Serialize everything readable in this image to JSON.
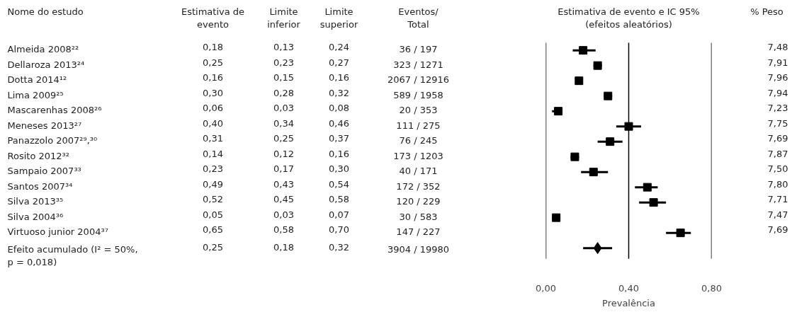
{
  "chart_data": [
    {
      "type": "other",
      "ylabel": "Nome do estudo",
      "categories": [
        "Estimativa de\nevento",
        "Limite\ninferior",
        "Limite\nsuperior",
        "Eventos/\nTotal",
        "% Peso"
      ],
      "y_categories": [
        "Almeida 2008²²",
        "Dellaroza 2013²⁴",
        "Dotta 2014¹²",
        "Lima 2009²⁵",
        "Mascarenhas 2008²⁶",
        "Meneses 2013²⁷",
        "Panazzolo 2007²⁹,³⁰",
        "Rosito 2012³²",
        "Sampaio 2007³³",
        "Santos 2007³⁴",
        "Silva 2013³⁵",
        "Silva 2004³⁶",
        "Virtuoso junior 2004³⁷",
        "Efeito acumulado (I² = 50%,\np = 0,018)"
      ],
      "cell_labels": [
        [
          "0,18",
          "0,13",
          "0,24",
          "36 / 197",
          "7,48"
        ],
        [
          "0,25",
          "0,23",
          "0,27",
          "323 / 1271",
          "7,91"
        ],
        [
          "0,16",
          "0,15",
          "0,16",
          "2067 / 12916",
          "7,96"
        ],
        [
          "0,30",
          "0,28",
          "0,32",
          "589 / 1958",
          "7,94"
        ],
        [
          "0,06",
          "0,03",
          "0,08",
          "20 / 353",
          "7,23"
        ],
        [
          "0,40",
          "0,34",
          "0,46",
          "111 / 275",
          "7,75"
        ],
        [
          "0,31",
          "0,25",
          "0,37",
          "76 / 245",
          "7,69"
        ],
        [
          "0,14",
          "0,12",
          "0,16",
          "173 / 1203",
          "7,87"
        ],
        [
          "0,23",
          "0,17",
          "0,30",
          "40 / 171",
          "7,50"
        ],
        [
          "0,49",
          "0,43",
          "0,54",
          "172 / 352",
          "7,80"
        ],
        [
          "0,52",
          "0,45",
          "0,58",
          "120 / 229",
          "7,71"
        ],
        [
          "0,05",
          "0,03",
          "0,07",
          "30 / 583",
          "7,47"
        ],
        [
          "0,65",
          "0,58",
          "0,70",
          "147 / 227",
          "7,69"
        ],
        [
          "0,25",
          "0,18",
          "0,32",
          "3904 / 19980",
          null
        ]
      ]
    },
    {
      "type": "scatter",
      "orientation": "horizontal",
      "title": "Estimativa de evento e IC 95%\n(efeitos aleatórios)",
      "xlabel": "Prevalência",
      "categories": [
        null,
        null,
        null,
        null,
        null,
        null,
        null,
        null,
        null,
        null,
        null,
        null,
        null,
        null
      ],
      "xlim": [
        0,
        0.8
      ],
      "xticks": [
        {
          "value": 0,
          "label": "0,00"
        },
        {
          "value": 0.4,
          "label": "0,40"
        },
        {
          "value": 0.8,
          "label": "0,80"
        }
      ],
      "grid": "x",
      "series": [
        {
          "color": "#000000",
          "marker": "square",
          "values": [
            0.18,
            0.25,
            0.16,
            0.3,
            0.06,
            0.4,
            0.31,
            0.14,
            0.23,
            0.49,
            0.52,
            0.05,
            0.65,
            null
          ],
          "errors": [
            [
              0.13,
              0.24
            ],
            [
              0.23,
              0.27
            ],
            null,
            [
              0.28,
              0.32
            ],
            [
              0.03,
              0.08
            ],
            [
              0.34,
              0.46
            ],
            [
              0.25,
              0.37
            ],
            [
              0.12,
              0.16
            ],
            [
              0.17,
              0.3
            ],
            [
              0.43,
              0.54
            ],
            [
              0.45,
              0.58
            ],
            [
              0.03,
              0.07
            ],
            [
              0.58,
              0.7
            ],
            null
          ]
        },
        {
          "color": "#000000",
          "marker": "diamond",
          "values": [
            null,
            null,
            null,
            null,
            null,
            null,
            null,
            null,
            null,
            null,
            null,
            null,
            null,
            0.25
          ],
          "errors": [
            null,
            null,
            null,
            null,
            null,
            null,
            null,
            null,
            null,
            null,
            null,
            null,
            null,
            [
              0.18,
              0.32
            ]
          ]
        }
      ]
    }
  ]
}
